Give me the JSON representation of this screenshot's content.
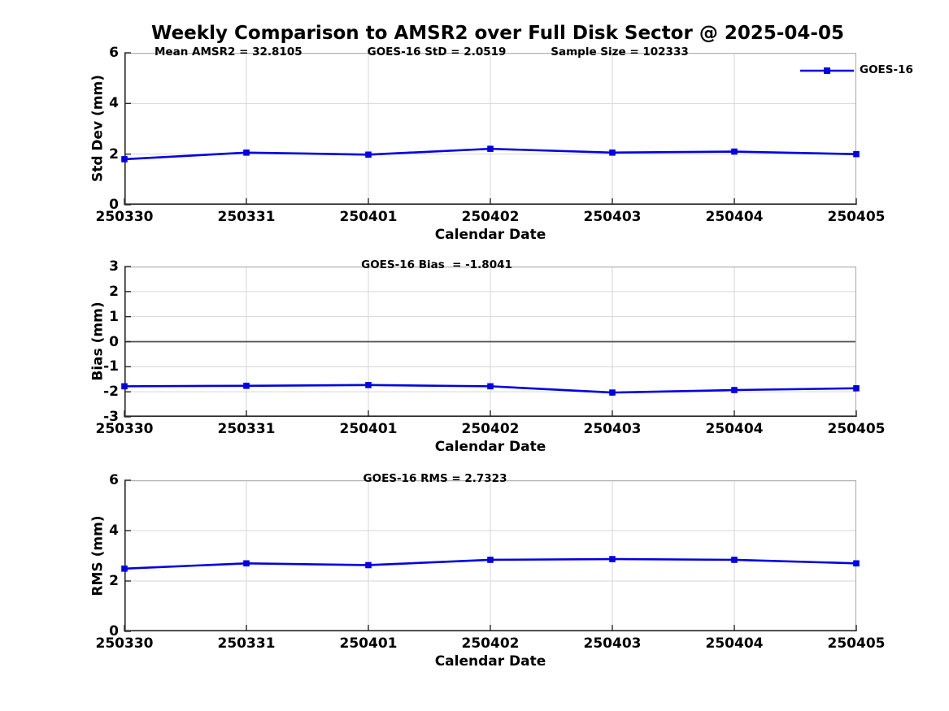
{
  "title": "Weekly Comparison to AMSR2 over Full Disk Sector @ 2025-04-05",
  "legend": {
    "label": "GOES-16"
  },
  "colors": {
    "line": "#0000e6",
    "grid": "#d6d6d6",
    "box": "#b3b3b3",
    "axis": "#262626",
    "zero_line": "#4d4d4d",
    "text": "#000000"
  },
  "chart_data": [
    {
      "type": "line",
      "panel": "Std Dev",
      "ylabel": "Std Dev (mm)",
      "xlabel": "Calendar Date",
      "ylim": [
        0,
        6
      ],
      "yticks": [
        0,
        2,
        4,
        6
      ],
      "grid": true,
      "legend_position": "top-right-outside",
      "categories": [
        "250330",
        "250331",
        "250401",
        "250402",
        "250403",
        "250404",
        "250405"
      ],
      "series": [
        {
          "name": "GOES-16",
          "values": [
            1.8,
            2.06,
            1.98,
            2.21,
            2.06,
            2.1,
            2.0
          ]
        }
      ],
      "annotations": [
        "Mean AMSR2 = 32.8105",
        "GOES-16 StD = 2.0519",
        "Sample Size = 102333"
      ]
    },
    {
      "type": "line",
      "panel": "Bias",
      "ylabel": "Bias (mm)",
      "xlabel": "Calendar Date",
      "ylim": [
        -3,
        3
      ],
      "yticks": [
        -3,
        -2,
        -1,
        0,
        1,
        2,
        3
      ],
      "zero_line": true,
      "grid": true,
      "categories": [
        "250330",
        "250331",
        "250401",
        "250402",
        "250403",
        "250404",
        "250405"
      ],
      "series": [
        {
          "name": "GOES-16",
          "values": [
            -1.78,
            -1.76,
            -1.73,
            -1.78,
            -2.03,
            -1.93,
            -1.86
          ]
        }
      ],
      "annotations": [
        "GOES-16 Bias  = -1.8041"
      ]
    },
    {
      "type": "line",
      "panel": "RMS",
      "ylabel": "RMS (mm)",
      "xlabel": "Calendar Date",
      "ylim": [
        0,
        6
      ],
      "yticks": [
        0,
        2,
        4,
        6
      ],
      "grid": true,
      "categories": [
        "250330",
        "250331",
        "250401",
        "250402",
        "250403",
        "250404",
        "250405"
      ],
      "series": [
        {
          "name": "GOES-16",
          "values": [
            2.49,
            2.7,
            2.63,
            2.84,
            2.87,
            2.84,
            2.7
          ]
        }
      ],
      "annotations": [
        "GOES-16 RMS = 2.7323"
      ]
    }
  ]
}
